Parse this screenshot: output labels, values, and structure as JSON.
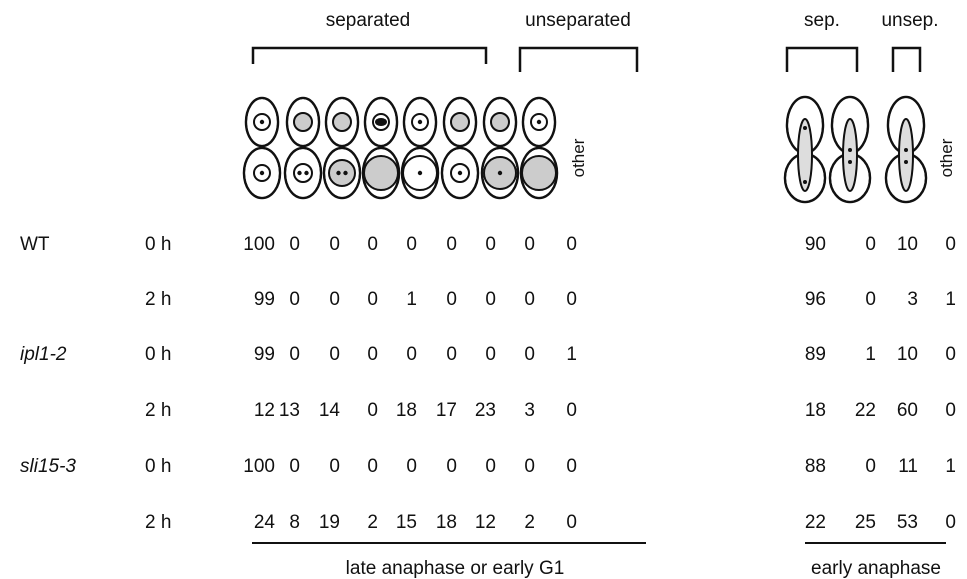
{
  "headers": {
    "separated": "separated",
    "unseparated": "unseparated",
    "other": "other",
    "sep": "sep.",
    "unsep": "unsep.",
    "other_early": "other"
  },
  "strains": [
    {
      "name": "WT",
      "timepoints": [
        {
          "time": "0 h",
          "late": [
            100,
            0,
            0,
            0,
            0,
            0,
            0,
            0,
            0
          ],
          "early": [
            90,
            0,
            10,
            0
          ]
        },
        {
          "time": "2 h",
          "late": [
            99,
            0,
            0,
            0,
            1,
            0,
            0,
            0,
            0
          ],
          "early": [
            96,
            0,
            3,
            1
          ]
        }
      ]
    },
    {
      "name": "ipl1-2",
      "timepoints": [
        {
          "time": "0 h",
          "late": [
            99,
            0,
            0,
            0,
            0,
            0,
            0,
            0,
            1
          ],
          "early": [
            89,
            1,
            10,
            0
          ]
        },
        {
          "time": "2 h",
          "late": [
            12,
            13,
            14,
            0,
            18,
            17,
            23,
            3,
            0
          ],
          "early": [
            18,
            22,
            60,
            0
          ]
        }
      ]
    },
    {
      "name": "sli15-3",
      "timepoints": [
        {
          "time": "0 h",
          "late": [
            100,
            0,
            0,
            0,
            0,
            0,
            0,
            0,
            0
          ],
          "early": [
            88,
            0,
            11,
            1
          ]
        },
        {
          "time": "2 h",
          "late": [
            24,
            8,
            19,
            2,
            15,
            18,
            12,
            2,
            0
          ],
          "early": [
            22,
            25,
            53,
            0
          ]
        }
      ]
    }
  ],
  "footer": {
    "late": "late anaphase or early G1",
    "early": "early anaphase"
  }
}
